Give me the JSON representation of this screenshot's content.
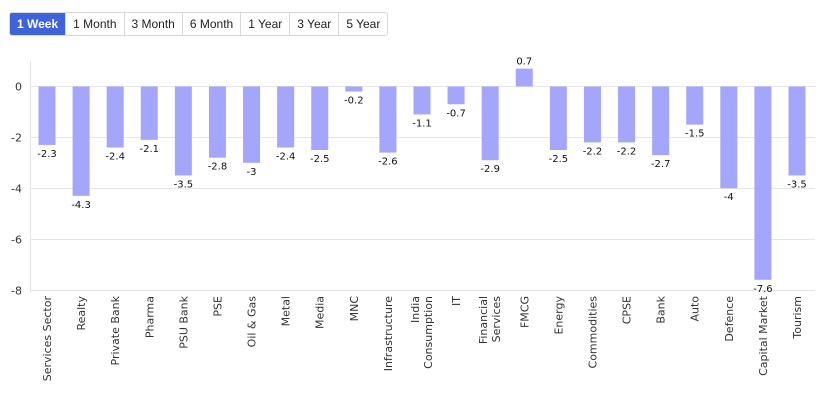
{
  "range_tabs": {
    "items": [
      "1 Week",
      "1 Month",
      "3 Month",
      "6 Month",
      "1 Year",
      "3 Year",
      "5 Year"
    ],
    "selected": "1 Week",
    "accent_color": "#3f63d8"
  },
  "chart_data": {
    "type": "bar",
    "categories": [
      "Services Sector",
      "Realty",
      "Private Bank",
      "Pharma",
      "PSU Bank",
      "PSE",
      "Oil & Gas",
      "Metal",
      "Media",
      "MNC",
      "Infrastructure",
      "India Consumption",
      "IT",
      "Financial Services",
      "FMCG",
      "Energy",
      "Commodities",
      "CPSE",
      "Bank",
      "Auto",
      "Defence",
      "Capital Market",
      "Tourism"
    ],
    "values": [
      -2.3,
      -4.3,
      -2.4,
      -2.1,
      -3.5,
      -2.8,
      -3,
      -2.4,
      -2.5,
      -0.2,
      -2.6,
      -1.1,
      -0.7,
      -2.9,
      0.7,
      -2.5,
      -2.2,
      -2.2,
      -2.7,
      -1.5,
      -4,
      -7.6,
      -3.5
    ],
    "ylim": [
      -8,
      1
    ],
    "yticks": [
      0,
      -2,
      -4,
      -6,
      -8
    ],
    "bar_color": "#a3a6fb",
    "grid": true
  }
}
